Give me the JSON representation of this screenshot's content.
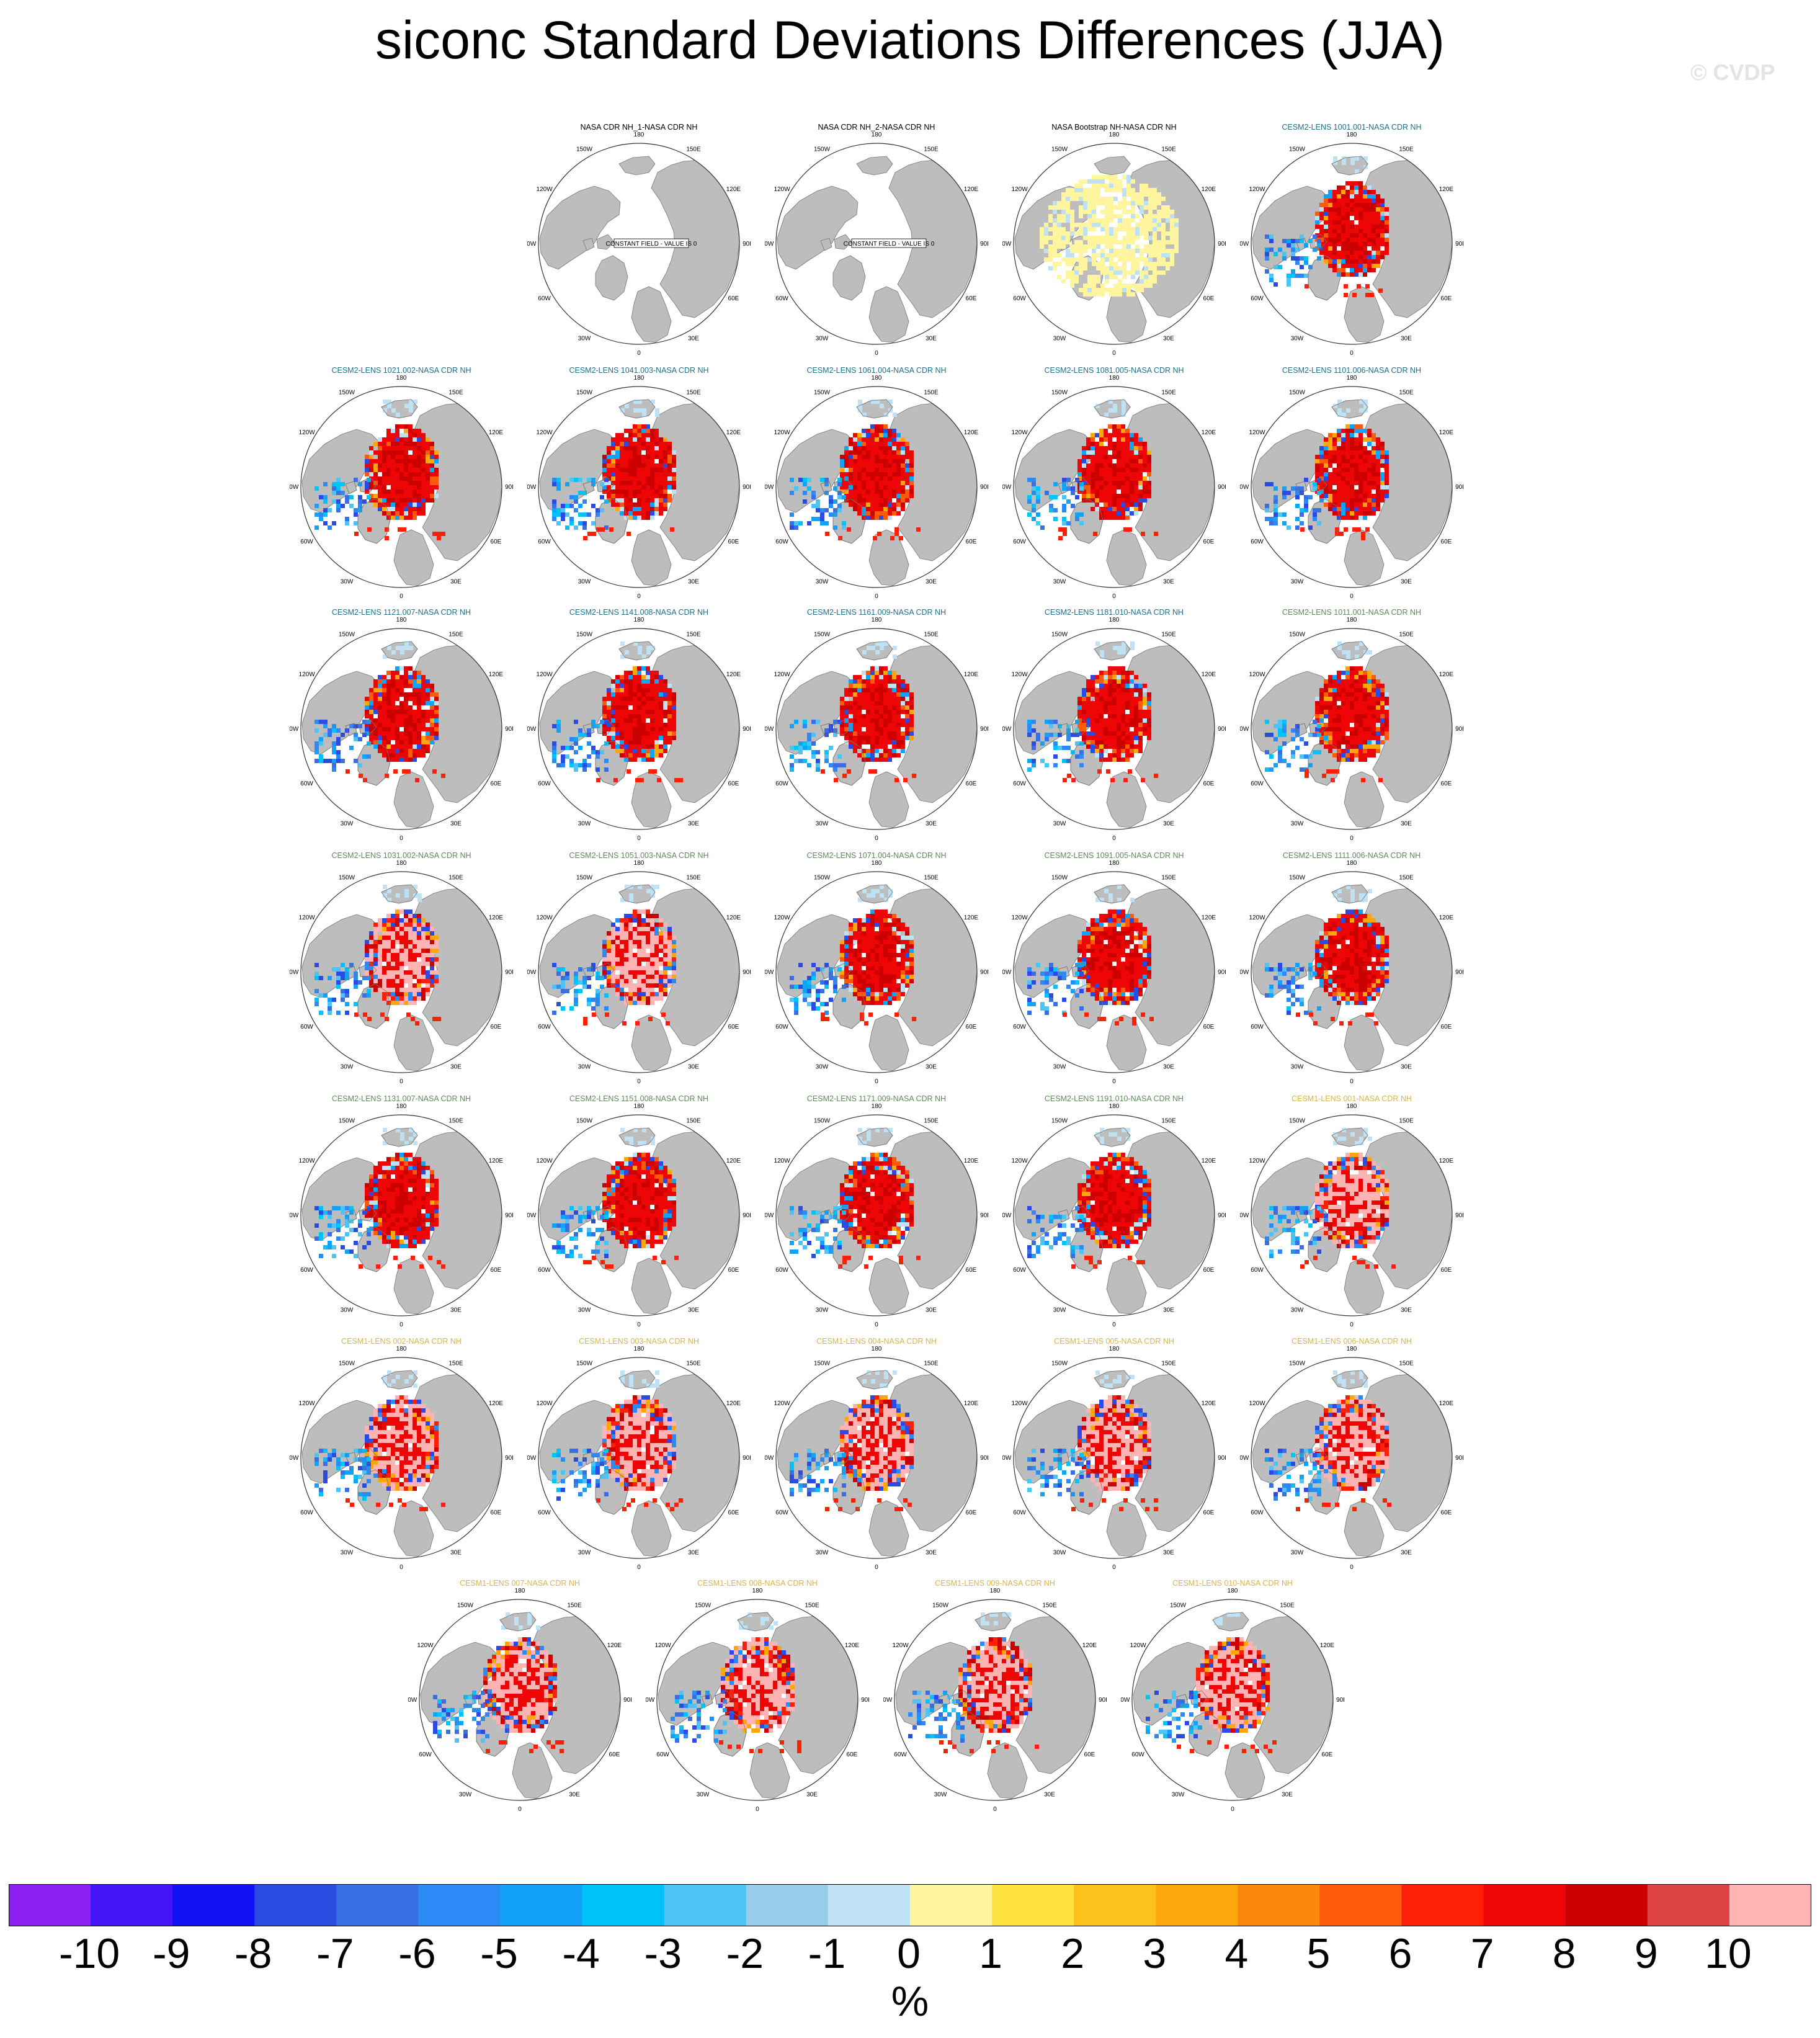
{
  "title": "siconc Standard Deviations Differences (JJA)",
  "watermark": "© CVDP",
  "units": "%",
  "constant_field_text": "CONSTANT FIELD - VALUE IS 0",
  "lon_labels": [
    "180",
    "150E",
    "120E",
    "90E",
    "60E",
    "30E",
    "0",
    "30W",
    "60W",
    "90W",
    "120W",
    "150W"
  ],
  "title_colors": {
    "obs": "#000000",
    "cesm2a": "#1f6f8b",
    "cesm2b": "#5f8a5a",
    "cesm1": "#d8b54a"
  },
  "colors": {
    "land": "#bdbdbd",
    "coast": "#777777",
    "ocean": "#ffffff"
  },
  "colorbar": {
    "labels": [
      "-10",
      "-9",
      "-8",
      "-7",
      "-6",
      "-5",
      "-4",
      "-3",
      "-2",
      "-1",
      "0",
      "1",
      "2",
      "3",
      "4",
      "5",
      "6",
      "7",
      "8",
      "9",
      "10"
    ],
    "colors": [
      "#8b1ff0",
      "#4216f5",
      "#1010f5",
      "#2b4be3",
      "#3a6fe4",
      "#2b8af5",
      "#12a3f9",
      "#00c3fb",
      "#4dc4f4",
      "#98cdea",
      "#bee1f4",
      "#fff59e",
      "#ffe23f",
      "#fdc11c",
      "#fda70c",
      "#fd870a",
      "#fd5a0a",
      "#fd1f08",
      "#ee0505",
      "#cc0000",
      "#de4343",
      "#ffb3b3"
    ]
  },
  "panels": [
    {
      "title": "NASA CDR NH_1-NASA CDR NH",
      "group": "obs",
      "style": "constant"
    },
    {
      "title": "NASA CDR NH_2-NASA CDR NH",
      "group": "obs",
      "style": "constant"
    },
    {
      "title": "NASA Bootstrap NH-NASA CDR NH",
      "group": "obs",
      "style": "bootstrap"
    },
    {
      "title": "CESM2-LENS 1001.001-NASA CDR NH",
      "group": "cesm2a",
      "style": "red"
    },
    {
      "title": "CESM2-LENS 1021.002-NASA CDR NH",
      "group": "cesm2a",
      "style": "red"
    },
    {
      "title": "CESM2-LENS 1041.003-NASA CDR NH",
      "group": "cesm2a",
      "style": "red"
    },
    {
      "title": "CESM2-LENS 1061.004-NASA CDR NH",
      "group": "cesm2a",
      "style": "red"
    },
    {
      "title": "CESM2-LENS 1081.005-NASA CDR NH",
      "group": "cesm2a",
      "style": "red"
    },
    {
      "title": "CESM2-LENS 1101.006-NASA CDR NH",
      "group": "cesm2a",
      "style": "red"
    },
    {
      "title": "CESM2-LENS 1121.007-NASA CDR NH",
      "group": "cesm2a",
      "style": "red"
    },
    {
      "title": "CESM2-LENS 1141.008-NASA CDR NH",
      "group": "cesm2a",
      "style": "red"
    },
    {
      "title": "CESM2-LENS 1161.009-NASA CDR NH",
      "group": "cesm2a",
      "style": "red"
    },
    {
      "title": "CESM2-LENS 1181.010-NASA CDR NH",
      "group": "cesm2a",
      "style": "red"
    },
    {
      "title": "CESM2-LENS 1011.001-NASA CDR NH",
      "group": "cesm2b",
      "style": "red"
    },
    {
      "title": "CESM2-LENS 1031.002-NASA CDR NH",
      "group": "cesm2b",
      "style": "pink"
    },
    {
      "title": "CESM2-LENS 1051.003-NASA CDR NH",
      "group": "cesm2b",
      "style": "pink"
    },
    {
      "title": "CESM2-LENS 1071.004-NASA CDR NH",
      "group": "cesm2b",
      "style": "red"
    },
    {
      "title": "CESM2-LENS 1091.005-NASA CDR NH",
      "group": "cesm2b",
      "style": "red"
    },
    {
      "title": "CESM2-LENS 1111.006-NASA CDR NH",
      "group": "cesm2b",
      "style": "red"
    },
    {
      "title": "CESM2-LENS 1131.007-NASA CDR NH",
      "group": "cesm2b",
      "style": "red"
    },
    {
      "title": "CESM2-LENS 1151.008-NASA CDR NH",
      "group": "cesm2b",
      "style": "red"
    },
    {
      "title": "CESM2-LENS 1171.009-NASA CDR NH",
      "group": "cesm2b",
      "style": "red"
    },
    {
      "title": "CESM2-LENS 1191.010-NASA CDR NH",
      "group": "cesm2b",
      "style": "red"
    },
    {
      "title": "CESM1-LENS 001-NASA CDR NH",
      "group": "cesm1",
      "style": "pink"
    },
    {
      "title": "CESM1-LENS 002-NASA CDR NH",
      "group": "cesm1",
      "style": "pink"
    },
    {
      "title": "CESM1-LENS 003-NASA CDR NH",
      "group": "cesm1",
      "style": "pink"
    },
    {
      "title": "CESM1-LENS 004-NASA CDR NH",
      "group": "cesm1",
      "style": "pink"
    },
    {
      "title": "CESM1-LENS 005-NASA CDR NH",
      "group": "cesm1",
      "style": "pink"
    },
    {
      "title": "CESM1-LENS 006-NASA CDR NH",
      "group": "cesm1",
      "style": "pink"
    },
    {
      "title": "CESM1-LENS 007-NASA CDR NH",
      "group": "cesm1",
      "style": "pink"
    },
    {
      "title": "CESM1-LENS 008-NASA CDR NH",
      "group": "cesm1",
      "style": "pink"
    },
    {
      "title": "CESM1-LENS 009-NASA CDR NH",
      "group": "cesm1",
      "style": "pink"
    },
    {
      "title": "CESM1-LENS 010-NASA CDR NH",
      "group": "cesm1",
      "style": "pink"
    }
  ]
}
